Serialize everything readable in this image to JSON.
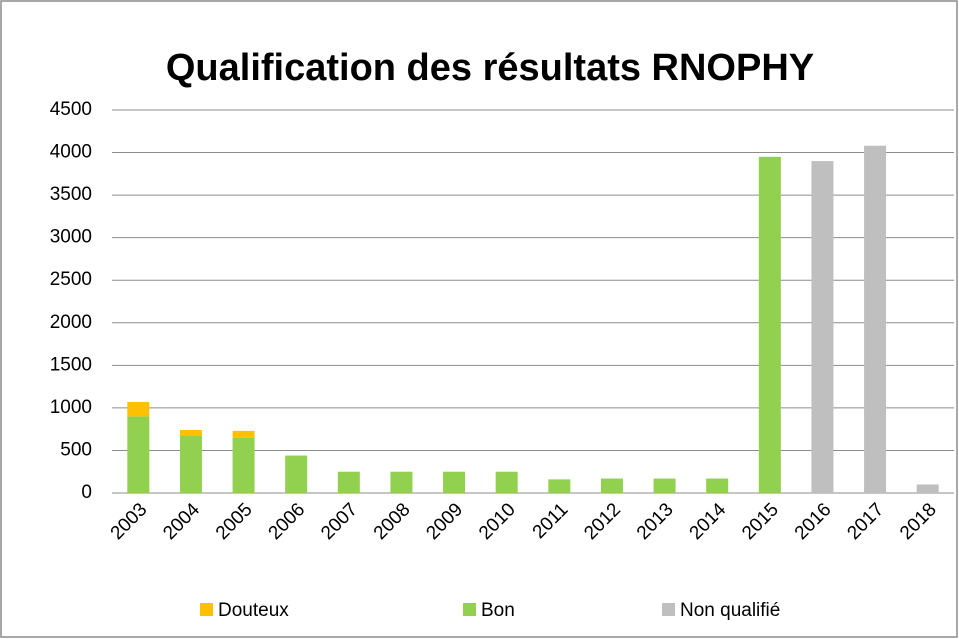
{
  "chart_data": {
    "type": "bar",
    "stacked": true,
    "title": "Qualification des résultats RNOPHY",
    "categories": [
      "2003",
      "2004",
      "2005",
      "2006",
      "2007",
      "2008",
      "2009",
      "2010",
      "2011",
      "2012",
      "2013",
      "2014",
      "2015",
      "2016",
      "2017",
      "2018"
    ],
    "series": [
      {
        "name": "Douteux",
        "color": "#ffc000",
        "values": [
          170,
          70,
          80,
          null,
          null,
          null,
          null,
          null,
          null,
          null,
          null,
          null,
          null,
          null,
          null,
          null
        ]
      },
      {
        "name": "Bon",
        "color": "#92d050",
        "values": [
          900,
          670,
          650,
          440,
          250,
          250,
          250,
          250,
          160,
          170,
          170,
          170,
          3950,
          null,
          null,
          null
        ]
      },
      {
        "name": "Non qualifié",
        "color": "#bfbfbf",
        "values": [
          null,
          null,
          null,
          null,
          null,
          null,
          null,
          null,
          null,
          null,
          null,
          null,
          null,
          3900,
          4080,
          100
        ]
      }
    ],
    "ylim": [
      0,
      4500
    ],
    "yticks": [
      0,
      500,
      1000,
      1500,
      2000,
      2500,
      3000,
      3500,
      4000,
      4500
    ],
    "grid": true,
    "legend": "bottom"
  }
}
